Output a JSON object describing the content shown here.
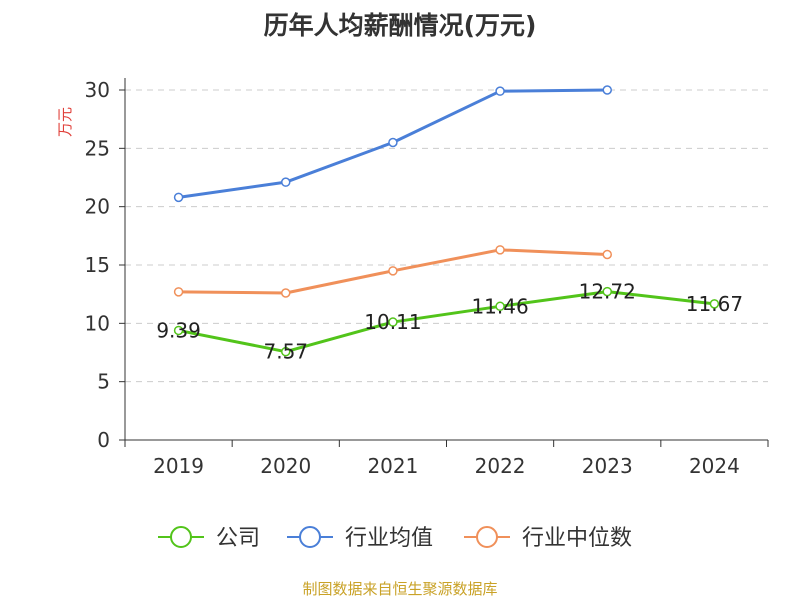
{
  "chart_data": {
    "type": "line",
    "title": "历年人均薪酬情况(万元)",
    "ylabel": "万元",
    "xlabel": "",
    "ylim": [
      0,
      30
    ],
    "yticks": [
      0,
      5,
      10,
      15,
      20,
      25,
      30
    ],
    "categories": [
      "2019",
      "2020",
      "2021",
      "2022",
      "2023",
      "2024"
    ],
    "grid": true,
    "legend_position": "bottom",
    "series": [
      {
        "name": "公司",
        "color": "#52c41a",
        "values": [
          9.39,
          7.57,
          10.11,
          11.46,
          12.72,
          11.67
        ],
        "data_labels": [
          "9.39",
          "7.57",
          "10.11",
          "11.46",
          "12.72",
          "11.67"
        ]
      },
      {
        "name": "行业均值",
        "color": "#4a7fd8",
        "values": [
          20.8,
          22.1,
          25.5,
          29.9,
          30.0,
          null
        ]
      },
      {
        "name": "行业中位数",
        "color": "#f0905a",
        "values": [
          12.7,
          12.6,
          14.5,
          16.3,
          15.9,
          null
        ]
      }
    ]
  },
  "source": "制图数据来自恒生聚源数据库"
}
